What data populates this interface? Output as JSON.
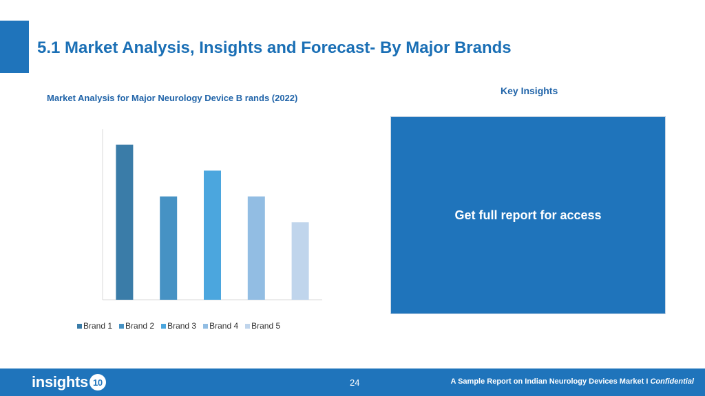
{
  "header": {
    "title": "5.1 Market Analysis, Insights and Forecast- By Major Brands"
  },
  "chart_data": {
    "type": "bar",
    "title": "Market Analysis for Major Neurology Device B rands (2022)",
    "categories": [
      "Brand 1",
      "Brand 2",
      "Brand 3",
      "Brand 4",
      "Brand 5"
    ],
    "values": [
      6,
      4,
      5,
      4,
      3
    ],
    "ylim": [
      0,
      6.6
    ],
    "colors": [
      "#3a7ca8",
      "#4692c4",
      "#4ba6de",
      "#92bde3",
      "#c0d5ec"
    ],
    "grid": false,
    "legend_position": "bottom",
    "legend": [
      "Brand 1",
      "Brand 2",
      "Brand 3",
      "Brand 4",
      "Brand 5"
    ]
  },
  "insights": {
    "heading": "Key Insights",
    "locked_text": "Get full report for access"
  },
  "footer": {
    "logo_text": "insights",
    "logo_badge": "10",
    "page_number": "24",
    "note": "A Sample Report on Indian Neurology Devices Market I ",
    "note_emphasis": "Confidential"
  }
}
